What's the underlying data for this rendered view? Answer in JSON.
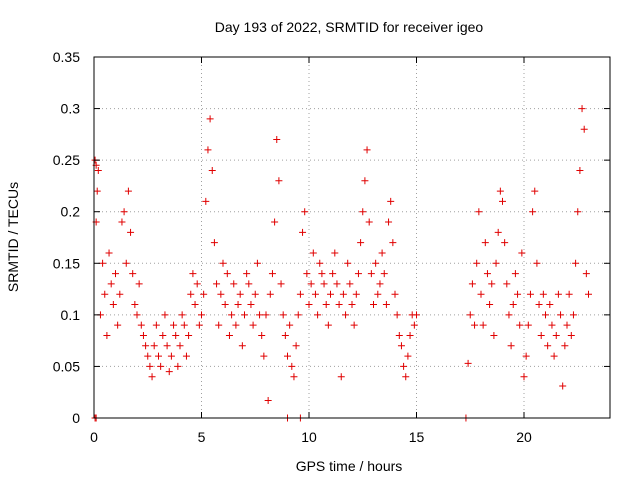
{
  "chart_data": {
    "type": "scatter",
    "title": "Day 193 of 2022, SRMTID for receiver igeo",
    "xlabel": "GPS time / hours",
    "ylabel": "SRMTID / TECUs",
    "xlim": [
      0,
      24
    ],
    "ylim": [
      0,
      0.35
    ],
    "xticks": [
      0,
      5,
      10,
      15,
      20
    ],
    "xtick_labels": [
      "0",
      "5",
      "10",
      "15",
      "20"
    ],
    "yticks": [
      0,
      0.05,
      0.1,
      0.15,
      0.2,
      0.25,
      0.3,
      0.35
    ],
    "ytick_labels": [
      "0",
      "0.05",
      "0.1",
      "0.15",
      "0.2",
      "0.25",
      "0.3",
      "0.35"
    ],
    "grid": true,
    "marker": "+",
    "color": "#e00000",
    "series": [
      {
        "name": "SRMTID",
        "points": [
          [
            0.05,
            0.25
          ],
          [
            0.1,
            0.245
          ],
          [
            0.15,
            0.22
          ],
          [
            0.1,
            0.19
          ],
          [
            0.2,
            0.24
          ],
          [
            0.05,
            0.0
          ],
          [
            0.1,
            0.0
          ],
          [
            0.3,
            0.1
          ],
          [
            0.4,
            0.15
          ],
          [
            0.5,
            0.12
          ],
          [
            0.6,
            0.08
          ],
          [
            0.7,
            0.16
          ],
          [
            0.8,
            0.13
          ],
          [
            0.9,
            0.11
          ],
          [
            1.0,
            0.14
          ],
          [
            1.1,
            0.09
          ],
          [
            1.2,
            0.12
          ],
          [
            1.3,
            0.19
          ],
          [
            1.4,
            0.2
          ],
          [
            1.5,
            0.15
          ],
          [
            1.6,
            0.22
          ],
          [
            1.7,
            0.18
          ],
          [
            1.8,
            0.14
          ],
          [
            1.9,
            0.11
          ],
          [
            2.0,
            0.1
          ],
          [
            2.1,
            0.13
          ],
          [
            2.2,
            0.09
          ],
          [
            2.3,
            0.08
          ],
          [
            2.4,
            0.07
          ],
          [
            2.5,
            0.06
          ],
          [
            2.6,
            0.05
          ],
          [
            2.7,
            0.04
          ],
          [
            2.8,
            0.07
          ],
          [
            2.9,
            0.09
          ],
          [
            3.0,
            0.06
          ],
          [
            3.1,
            0.05
          ],
          [
            3.2,
            0.08
          ],
          [
            3.3,
            0.1
          ],
          [
            3.4,
            0.07
          ],
          [
            3.5,
            0.045
          ],
          [
            3.6,
            0.06
          ],
          [
            3.7,
            0.09
          ],
          [
            3.8,
            0.08
          ],
          [
            3.9,
            0.05
          ],
          [
            4.0,
            0.07
          ],
          [
            4.1,
            0.1
          ],
          [
            4.2,
            0.09
          ],
          [
            4.3,
            0.06
          ],
          [
            4.4,
            0.08
          ],
          [
            4.5,
            0.12
          ],
          [
            4.6,
            0.14
          ],
          [
            4.7,
            0.11
          ],
          [
            4.8,
            0.13
          ],
          [
            4.9,
            0.09
          ],
          [
            5.0,
            0.1
          ],
          [
            5.1,
            0.12
          ],
          [
            5.2,
            0.21
          ],
          [
            5.3,
            0.26
          ],
          [
            5.4,
            0.29
          ],
          [
            5.5,
            0.24
          ],
          [
            5.6,
            0.17
          ],
          [
            5.7,
            0.13
          ],
          [
            5.8,
            0.09
          ],
          [
            5.9,
            0.12
          ],
          [
            6.0,
            0.15
          ],
          [
            6.1,
            0.11
          ],
          [
            6.2,
            0.14
          ],
          [
            6.3,
            0.08
          ],
          [
            6.4,
            0.1
          ],
          [
            6.5,
            0.13
          ],
          [
            6.6,
            0.09
          ],
          [
            6.7,
            0.11
          ],
          [
            6.8,
            0.12
          ],
          [
            6.9,
            0.07
          ],
          [
            7.0,
            0.1
          ],
          [
            7.1,
            0.14
          ],
          [
            7.2,
            0.13
          ],
          [
            7.3,
            0.11
          ],
          [
            7.4,
            0.09
          ],
          [
            7.5,
            0.12
          ],
          [
            7.6,
            0.15
          ],
          [
            7.7,
            0.1
          ],
          [
            7.8,
            0.08
          ],
          [
            7.9,
            0.06
          ],
          [
            8.0,
            0.1
          ],
          [
            8.1,
            0.017
          ],
          [
            8.2,
            0.12
          ],
          [
            8.3,
            0.14
          ],
          [
            8.4,
            0.19
          ],
          [
            8.5,
            0.27
          ],
          [
            8.6,
            0.23
          ],
          [
            8.7,
            0.13
          ],
          [
            8.8,
            0.1
          ],
          [
            8.9,
            0.08
          ],
          [
            9.0,
            0.06
          ],
          [
            9.1,
            0.09
          ],
          [
            9.2,
            0.05
          ],
          [
            9.3,
            0.04
          ],
          [
            9.0,
            0.0
          ],
          [
            9.6,
            0.0
          ],
          [
            9.4,
            0.07
          ],
          [
            9.5,
            0.1
          ],
          [
            9.6,
            0.12
          ],
          [
            9.7,
            0.18
          ],
          [
            9.8,
            0.2
          ],
          [
            9.9,
            0.14
          ],
          [
            10.0,
            0.11
          ],
          [
            10.1,
            0.13
          ],
          [
            10.2,
            0.16
          ],
          [
            10.3,
            0.12
          ],
          [
            10.4,
            0.1
          ],
          [
            10.5,
            0.15
          ],
          [
            10.6,
            0.14
          ],
          [
            10.7,
            0.13
          ],
          [
            10.8,
            0.11
          ],
          [
            10.9,
            0.09
          ],
          [
            11.0,
            0.12
          ],
          [
            11.1,
            0.14
          ],
          [
            11.2,
            0.16
          ],
          [
            11.3,
            0.13
          ],
          [
            11.4,
            0.11
          ],
          [
            11.5,
            0.04
          ],
          [
            11.6,
            0.12
          ],
          [
            11.7,
            0.1
          ],
          [
            11.8,
            0.15
          ],
          [
            11.9,
            0.13
          ],
          [
            12.0,
            0.11
          ],
          [
            12.1,
            0.09
          ],
          [
            12.2,
            0.12
          ],
          [
            12.3,
            0.14
          ],
          [
            12.4,
            0.17
          ],
          [
            12.5,
            0.2
          ],
          [
            12.6,
            0.23
          ],
          [
            12.7,
            0.26
          ],
          [
            12.8,
            0.19
          ],
          [
            12.9,
            0.14
          ],
          [
            13.0,
            0.11
          ],
          [
            13.1,
            0.15
          ],
          [
            13.2,
            0.12
          ],
          [
            13.3,
            0.13
          ],
          [
            13.4,
            0.16
          ],
          [
            13.5,
            0.14
          ],
          [
            13.6,
            0.11
          ],
          [
            13.7,
            0.19
          ],
          [
            13.8,
            0.21
          ],
          [
            13.9,
            0.17
          ],
          [
            14.0,
            0.12
          ],
          [
            14.1,
            0.1
          ],
          [
            14.2,
            0.08
          ],
          [
            14.3,
            0.07
          ],
          [
            14.4,
            0.05
          ],
          [
            14.5,
            0.04
          ],
          [
            14.6,
            0.06
          ],
          [
            14.7,
            0.08
          ],
          [
            14.8,
            0.1
          ],
          [
            14.9,
            0.09
          ],
          [
            15.0,
            0.1
          ],
          [
            17.3,
            0.0
          ],
          [
            17.4,
            0.053
          ],
          [
            17.5,
            0.1
          ],
          [
            17.6,
            0.13
          ],
          [
            17.7,
            0.09
          ],
          [
            17.8,
            0.15
          ],
          [
            17.9,
            0.2
          ],
          [
            18.0,
            0.12
          ],
          [
            18.1,
            0.09
          ],
          [
            18.2,
            0.17
          ],
          [
            18.3,
            0.14
          ],
          [
            18.4,
            0.11
          ],
          [
            18.5,
            0.13
          ],
          [
            18.6,
            0.08
          ],
          [
            18.7,
            0.15
          ],
          [
            18.8,
            0.18
          ],
          [
            18.9,
            0.22
          ],
          [
            19.0,
            0.21
          ],
          [
            19.1,
            0.17
          ],
          [
            19.2,
            0.13
          ],
          [
            19.3,
            0.1
          ],
          [
            19.4,
            0.07
          ],
          [
            19.5,
            0.11
          ],
          [
            19.6,
            0.14
          ],
          [
            19.7,
            0.12
          ],
          [
            19.8,
            0.09
          ],
          [
            19.9,
            0.16
          ],
          [
            20.0,
            0.04
          ],
          [
            20.1,
            0.06
          ],
          [
            20.2,
            0.09
          ],
          [
            20.3,
            0.12
          ],
          [
            20.4,
            0.2
          ],
          [
            20.5,
            0.22
          ],
          [
            20.6,
            0.15
          ],
          [
            20.7,
            0.11
          ],
          [
            20.8,
            0.08
          ],
          [
            20.9,
            0.12
          ],
          [
            21.0,
            0.1
          ],
          [
            21.1,
            0.07
          ],
          [
            21.2,
            0.11
          ],
          [
            21.3,
            0.09
          ],
          [
            21.4,
            0.06
          ],
          [
            21.5,
            0.08
          ],
          [
            21.6,
            0.12
          ],
          [
            21.7,
            0.1
          ],
          [
            21.8,
            0.031
          ],
          [
            21.9,
            0.07
          ],
          [
            22.0,
            0.09
          ],
          [
            22.1,
            0.12
          ],
          [
            22.2,
            0.08
          ],
          [
            22.3,
            0.1
          ],
          [
            22.4,
            0.15
          ],
          [
            22.5,
            0.2
          ],
          [
            22.6,
            0.24
          ],
          [
            22.7,
            0.3
          ],
          [
            22.8,
            0.28
          ],
          [
            22.9,
            0.14
          ],
          [
            23.0,
            0.12
          ]
        ]
      }
    ]
  }
}
